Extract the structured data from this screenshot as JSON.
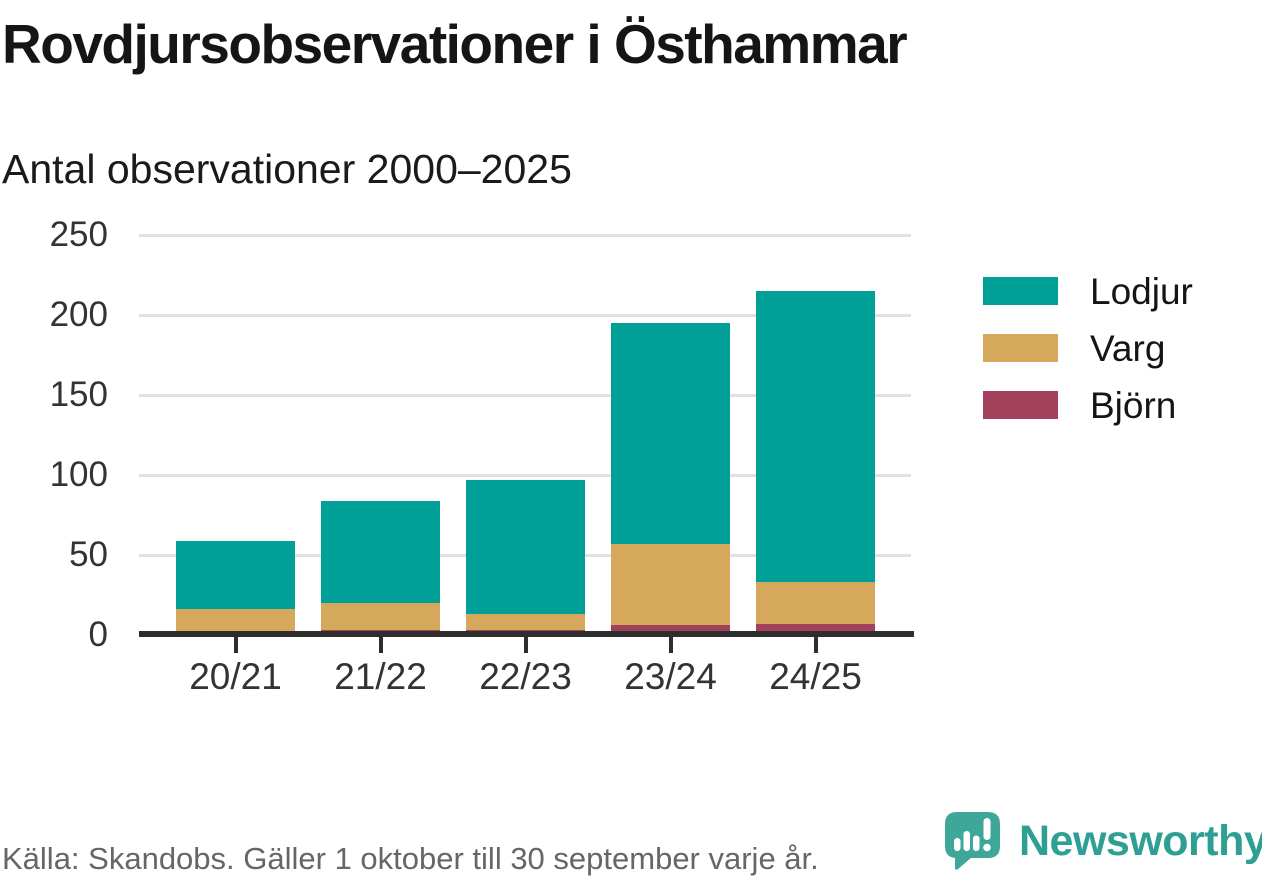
{
  "header": {
    "title": "Rovdjursobservationer i Östhammar",
    "subtitle": "Antal observationer 2000–2025"
  },
  "chart_data": {
    "type": "bar",
    "stacked": true,
    "title": "Rovdjursobservationer i Östhammar",
    "subtitle": "Antal observationer 2000–2025",
    "categories": [
      "20/21",
      "21/22",
      "22/23",
      "23/24",
      "24/25"
    ],
    "series": [
      {
        "name": "Lodjur",
        "color": "#00a099",
        "values": [
          43,
          64,
          84,
          138,
          182
        ]
      },
      {
        "name": "Varg",
        "color": "#d5a85b",
        "values": [
          14,
          17,
          10,
          51,
          26
        ]
      },
      {
        "name": "Björn",
        "color": "#a3415c",
        "values": [
          2,
          3,
          3,
          6,
          7
        ]
      }
    ],
    "stack_totals": [
      59,
      84,
      97,
      195,
      215
    ],
    "xlabel": "",
    "ylabel": "Antal observationer",
    "ylim": [
      0,
      250
    ],
    "yticks": [
      0,
      50,
      100,
      150,
      200,
      250
    ],
    "grid": "horizontal",
    "legend_position": "right",
    "legend_entries": [
      "Lodjur",
      "Varg",
      "Björn"
    ]
  },
  "footer": {
    "source": "Källa: Skandobs. Gäller 1 oktober till 30 september varje år.",
    "brand_name": "Newsworthy",
    "brand_icon": "speech-bubble-bar-chart-icon",
    "brand_color": "#2e9f93",
    "icon_color": "#3fa79a"
  },
  "colors": {
    "axis": "#2e2e2e",
    "gridline": "#e1e1e1",
    "tick_label": "#333333",
    "text": "#151515",
    "source_text": "#666666"
  }
}
